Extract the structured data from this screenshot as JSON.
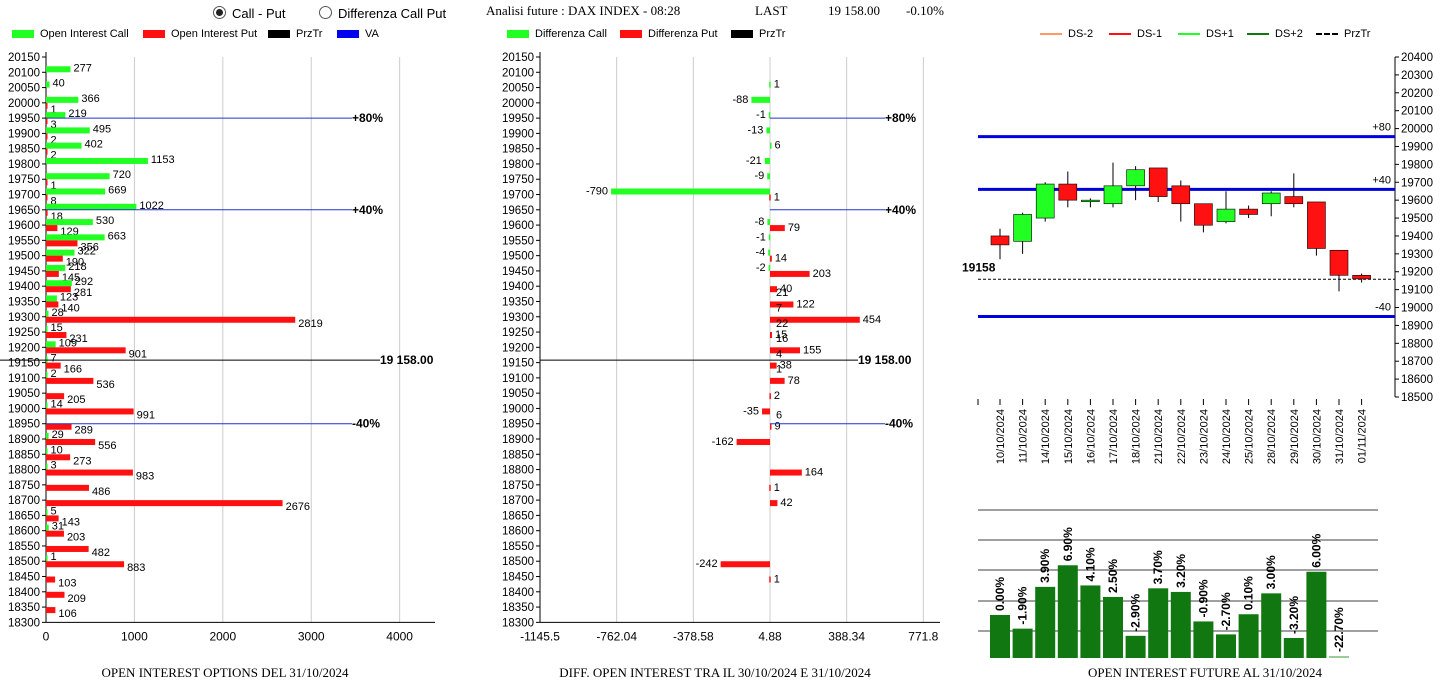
{
  "header": {
    "radio_call_put": "Call - Put",
    "radio_diff": "Differenza Call Put",
    "title": "Analisi future : DAX INDEX - 08:28",
    "last_label": "LAST",
    "last_value": "19 158.00",
    "last_change": "-0.10%"
  },
  "colors": {
    "green": "#22ff22",
    "red": "#ff1111",
    "dark_green": "#117711",
    "blue": "#0000dd"
  },
  "panel1": {
    "legend": [
      "Open Interest Call",
      "Open Interest Put",
      "PrzTr",
      "VA"
    ],
    "footer": "OPEN INTEREST OPTIONS DEL 31/10/2024"
  },
  "panel2": {
    "legend": [
      "Differenza Call",
      "Differenza Put",
      "PrzTr"
    ],
    "footer": "DIFF. OPEN INTEREST TRA IL 30/10/2024 E 31/10/2024"
  },
  "panel3": {
    "legend": [
      "DS-2",
      "DS-1",
      "DS+1",
      "DS+2",
      "PrzTr"
    ],
    "footer": "OPEN INTEREST FUTURE AL 31/10/2024"
  },
  "chart_data": [
    {
      "type": "bar",
      "orientation": "horizontal",
      "strikes": [
        20150,
        20100,
        20050,
        20000,
        19950,
        19900,
        19850,
        19800,
        19750,
        19700,
        19650,
        19600,
        19550,
        19500,
        19450,
        19400,
        19350,
        19300,
        19250,
        19200,
        19150,
        19100,
        19050,
        19000,
        18950,
        18900,
        18850,
        18800,
        18750,
        18700,
        18650,
        18600,
        18550,
        18500,
        18450,
        18400,
        18350,
        18300
      ],
      "series": [
        {
          "name": "Open Interest Call",
          "values": [
            null,
            277,
            40,
            366,
            219,
            495,
            402,
            1153,
            720,
            669,
            1022,
            530,
            663,
            322,
            218,
            292,
            123,
            28,
            15,
            109,
            7,
            2,
            null,
            14,
            null,
            29,
            10,
            3,
            null,
            null,
            5,
            31,
            null,
            1,
            null,
            null,
            null,
            null
          ]
        },
        {
          "name": "Open Interest Put",
          "values": [
            null,
            null,
            null,
            1,
            3,
            2,
            2,
            null,
            1,
            8,
            18,
            129,
            356,
            190,
            145,
            281,
            140,
            2819,
            231,
            901,
            166,
            536,
            205,
            991,
            289,
            556,
            273,
            983,
            486,
            2676,
            143,
            203,
            482,
            883,
            103,
            209,
            106,
            null
          ]
        }
      ],
      "xlim": [
        0,
        4400
      ],
      "xticks": [
        "0",
        "1000",
        "2000",
        "3000",
        "4000"
      ],
      "reference_lines": [
        {
          "label": "+80%",
          "strike": 19950
        },
        {
          "label": "+40%",
          "strike": 19650
        },
        {
          "label": "19 158.00",
          "strike": 19158
        },
        {
          "label": "-40%",
          "strike": 18950
        }
      ]
    },
    {
      "type": "bar",
      "orientation": "horizontal",
      "strikes": [
        20150,
        20100,
        20050,
        20000,
        19950,
        19900,
        19850,
        19800,
        19750,
        19700,
        19650,
        19600,
        19550,
        19500,
        19450,
        19400,
        19350,
        19300,
        19250,
        19200,
        19150,
        19100,
        19050,
        19000,
        18950,
        18900,
        18850,
        18800,
        18750,
        18700,
        18650,
        18600,
        18550,
        18500,
        18450,
        18400,
        18350,
        18300
      ],
      "series": [
        {
          "name": "Differenza Call",
          "values": [
            null,
            null,
            1,
            -88,
            -1,
            -13,
            6,
            -21,
            -9,
            -790,
            null,
            -8,
            -1,
            -4,
            -2,
            null,
            null,
            null,
            null,
            null,
            null,
            null,
            null,
            null,
            null,
            null,
            null,
            null,
            null,
            null,
            null,
            null,
            null,
            null,
            null,
            null,
            null,
            null
          ]
        },
        {
          "name": "Differenza Put",
          "values": [
            null,
            null,
            null,
            null,
            null,
            null,
            null,
            null,
            null,
            1,
            null,
            79,
            null,
            14,
            203,
            40,
            122,
            454,
            15,
            155,
            38,
            78,
            2,
            -35,
            9,
            -162,
            null,
            164,
            1,
            42,
            null,
            null,
            null,
            -242,
            1,
            null,
            null,
            null
          ]
        },
        {
          "name": "Differenza Call (low)",
          "values": [
            null,
            null,
            null,
            null,
            null,
            null,
            null,
            null,
            null,
            null,
            null,
            null,
            null,
            null,
            null,
            21,
            7,
            22,
            16,
            4,
            1,
            null,
            null,
            6,
            null,
            null,
            null,
            null,
            null,
            null,
            null,
            null,
            null,
            null,
            null,
            null,
            null,
            null
          ]
        }
      ],
      "xlim": [
        -1145.5,
        1155.3
      ],
      "xticks": [
        "-1145.5",
        "-762.04",
        "-378.58",
        "4.88",
        "388.34",
        "771.8"
      ],
      "reference_lines": [
        {
          "label": "+80%",
          "strike": 19950
        },
        {
          "label": "+40%",
          "strike": 19650
        },
        {
          "label": "19 158.00",
          "strike": 19158
        },
        {
          "label": "-40%",
          "strike": 18950
        }
      ]
    },
    {
      "type": "candlestick",
      "dates": [
        "10/10/2024",
        "11/10/2024",
        "14/10/2024",
        "15/10/2024",
        "16/10/2024",
        "17/10/2024",
        "18/10/2024",
        "21/10/2024",
        "22/10/2024",
        "23/10/2024",
        "24/10/2024",
        "25/10/2024",
        "28/10/2024",
        "29/10/2024",
        "30/10/2024",
        "31/10/2024",
        "01/11/2024"
      ],
      "ohlc": [
        [
          19400,
          19440,
          19270,
          19350
        ],
        [
          19370,
          19530,
          19300,
          19520
        ],
        [
          19500,
          19700,
          19480,
          19690
        ],
        [
          19690,
          19760,
          19560,
          19600
        ],
        [
          19600,
          19610,
          19560,
          19600
        ],
        [
          19580,
          19810,
          19560,
          19680
        ],
        [
          19680,
          19790,
          19600,
          19770
        ],
        [
          19780,
          19780,
          19590,
          19620
        ],
        [
          19680,
          19710,
          19480,
          19580
        ],
        [
          19580,
          19580,
          19420,
          19460
        ],
        [
          19480,
          19650,
          19470,
          19550
        ],
        [
          19550,
          19570,
          19500,
          19520
        ],
        [
          19580,
          19650,
          19510,
          19640
        ],
        [
          19620,
          19750,
          19560,
          19580
        ],
        [
          19590,
          19590,
          19290,
          19330
        ],
        [
          19320,
          19320,
          19090,
          19180
        ],
        [
          19180,
          19190,
          19140,
          19160
        ]
      ],
      "ylim": [
        18500,
        20400
      ],
      "yticks": [
        "18500",
        "18600",
        "18700",
        "18800",
        "18900",
        "19000",
        "19100",
        "19200",
        "19300",
        "19400",
        "19500",
        "19600",
        "19700",
        "19800",
        "19900",
        "20000",
        "20100",
        "20200",
        "20300",
        "20400"
      ],
      "price": 19158,
      "price_label": "19158",
      "levels": [
        {
          "label": "+80",
          "value": 19955
        },
        {
          "label": "+40",
          "value": 19660
        },
        {
          "label": "-40",
          "value": 18950
        }
      ]
    },
    {
      "type": "bar",
      "values": [
        0.0,
        -1.9,
        3.9,
        6.9,
        4.1,
        2.5,
        -2.9,
        3.7,
        3.2,
        -0.9,
        -2.7,
        0.1,
        3.0,
        -3.2,
        6.0,
        -22.7
      ],
      "labels": [
        "0.00%",
        "-1.90%",
        "3.90%",
        "6.90%",
        "4.10%",
        "2.50%",
        "-2.90%",
        "3.70%",
        "3.20%",
        "-0.90%",
        "-2.70%",
        "0.10%",
        "3.00%",
        "-3.20%",
        "6.00%",
        "-22.70%"
      ]
    }
  ]
}
